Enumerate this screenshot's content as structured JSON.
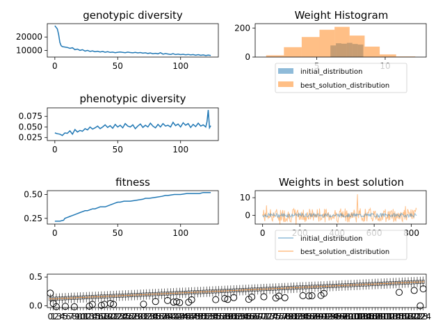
{
  "colors": {
    "line": "#1f77b4",
    "init": "#1f77b4",
    "best": "#ff7f0e",
    "axis": "#000000"
  },
  "chart_data": [
    {
      "type": "line",
      "title": "genotypic diversity",
      "xticks": [
        0,
        50,
        100
      ],
      "yticks": [
        10000,
        20000
      ],
      "ytick_labels": [
        "10000",
        "20000"
      ],
      "xlim": [
        -6,
        130
      ],
      "ylim": [
        5000,
        30000
      ],
      "x": [
        0,
        2,
        3,
        4,
        5,
        6,
        8,
        10,
        12,
        14,
        16,
        18,
        20,
        22,
        24,
        26,
        28,
        30,
        32,
        34,
        36,
        38,
        40,
        42,
        44,
        46,
        48,
        50,
        52,
        54,
        56,
        58,
        60,
        62,
        64,
        66,
        68,
        70,
        72,
        74,
        76,
        78,
        80,
        82,
        84,
        86,
        88,
        90,
        92,
        94,
        96,
        98,
        100,
        102,
        104,
        106,
        108,
        110,
        112,
        114,
        116,
        118,
        120,
        122,
        124
      ],
      "y": [
        28500,
        26000,
        22000,
        16000,
        13500,
        12800,
        12500,
        12200,
        11500,
        12000,
        10500,
        11000,
        10000,
        10500,
        9500,
        10000,
        9200,
        9600,
        9000,
        9400,
        8800,
        9200,
        8600,
        9000,
        8500,
        8700,
        8300,
        8600,
        8800,
        8500,
        8300,
        8700,
        8400,
        8200,
        8500,
        8100,
        8400,
        7900,
        8200,
        7700,
        8000,
        7500,
        7800,
        7400,
        8300,
        7200,
        7600,
        7300,
        7000,
        7500,
        6900,
        7200,
        6800,
        7100,
        6700,
        7000,
        6600,
        6900,
        6400,
        6800,
        6300,
        6600,
        6100,
        6500,
        6200
      ]
    },
    {
      "type": "bar",
      "title": "Weight Histogram",
      "xticks": [
        5,
        10
      ],
      "yticks": [
        0,
        200
      ],
      "xlim": [
        0.5,
        13
      ],
      "ylim": [
        0,
        230
      ],
      "series": [
        {
          "name": "initial_distribution",
          "bins": [
            [
              6.0,
              6.4,
              80
            ],
            [
              6.4,
              6.8,
              95
            ],
            [
              6.8,
              7.2,
              92
            ],
            [
              7.2,
              7.6,
              98
            ],
            [
              7.6,
              8.0,
              90
            ],
            [
              8.0,
              8.4,
              86
            ]
          ]
        },
        {
          "name": "best_solution_distribution",
          "bins": [
            [
              1.3,
              2.6,
              12
            ],
            [
              2.6,
              3.9,
              68
            ],
            [
              3.9,
              5.2,
              138
            ],
            [
              5.2,
              6.3,
              188
            ],
            [
              6.3,
              7.4,
              208
            ],
            [
              7.4,
              8.5,
              148
            ],
            [
              8.5,
              9.6,
              72
            ],
            [
              9.6,
              10.8,
              18
            ],
            [
              10.8,
              12.2,
              4
            ]
          ]
        }
      ],
      "legend": [
        "initial_distribution",
        "best_solution_distribution"
      ]
    },
    {
      "type": "line",
      "title": "phenotypic diversity",
      "xticks": [
        0,
        50,
        100
      ],
      "yticks": [
        0.025,
        0.05,
        0.075
      ],
      "ytick_labels": [
        "0.025",
        "0.050",
        "0.075"
      ],
      "xlim": [
        -6,
        130
      ],
      "ylim": [
        0.018,
        0.095
      ],
      "x": [
        0,
        2,
        4,
        6,
        8,
        10,
        12,
        14,
        16,
        18,
        20,
        22,
        24,
        26,
        28,
        30,
        32,
        34,
        36,
        38,
        40,
        42,
        44,
        46,
        48,
        50,
        52,
        54,
        56,
        58,
        60,
        62,
        64,
        66,
        68,
        70,
        72,
        74,
        76,
        78,
        80,
        82,
        84,
        86,
        88,
        90,
        92,
        94,
        96,
        98,
        100,
        102,
        104,
        106,
        108,
        110,
        112,
        114,
        116,
        118,
        120,
        121,
        122,
        123,
        124
      ],
      "y": [
        0.036,
        0.034,
        0.033,
        0.03,
        0.036,
        0.035,
        0.041,
        0.033,
        0.044,
        0.038,
        0.042,
        0.04,
        0.046,
        0.043,
        0.05,
        0.045,
        0.048,
        0.052,
        0.046,
        0.05,
        0.055,
        0.049,
        0.053,
        0.047,
        0.056,
        0.05,
        0.054,
        0.048,
        0.058,
        0.052,
        0.05,
        0.055,
        0.046,
        0.052,
        0.057,
        0.049,
        0.054,
        0.05,
        0.059,
        0.052,
        0.048,
        0.056,
        0.05,
        0.058,
        0.052,
        0.054,
        0.05,
        0.061,
        0.053,
        0.057,
        0.05,
        0.06,
        0.054,
        0.058,
        0.049,
        0.056,
        0.051,
        0.059,
        0.052,
        0.055,
        0.05,
        0.062,
        0.09,
        0.048,
        0.053
      ]
    },
    {
      "type": "line",
      "title": "Weights in best solution",
      "xticks": [
        0,
        200,
        400,
        600,
        800
      ],
      "yticks": [
        0,
        10
      ],
      "xlim": [
        -40,
        880
      ],
      "ylim": [
        -5,
        14
      ],
      "legend": [
        "initial_distribution",
        "best_solution_distribution"
      ]
    },
    {
      "type": "line",
      "title": "fitness",
      "xticks": [
        0,
        50,
        100
      ],
      "yticks": [
        0.25,
        0.5
      ],
      "ytick_labels": [
        "0.25",
        "0.50"
      ],
      "xlim": [
        -6,
        130
      ],
      "ylim": [
        0.19,
        0.54
      ],
      "x": [
        0,
        4,
        7,
        8,
        10,
        12,
        14,
        16,
        18,
        20,
        22,
        24,
        26,
        28,
        30,
        32,
        34,
        36,
        38,
        40,
        42,
        44,
        46,
        48,
        50,
        52,
        55,
        60,
        65,
        70,
        72,
        75,
        80,
        85,
        88,
        90,
        95,
        100,
        105,
        110,
        115,
        118,
        120,
        124
      ],
      "y": [
        0.22,
        0.22,
        0.23,
        0.25,
        0.26,
        0.27,
        0.28,
        0.29,
        0.3,
        0.31,
        0.32,
        0.33,
        0.33,
        0.34,
        0.35,
        0.35,
        0.36,
        0.37,
        0.37,
        0.37,
        0.38,
        0.39,
        0.4,
        0.41,
        0.42,
        0.42,
        0.43,
        0.43,
        0.44,
        0.45,
        0.46,
        0.46,
        0.47,
        0.48,
        0.49,
        0.49,
        0.5,
        0.5,
        0.51,
        0.51,
        0.51,
        0.52,
        0.52,
        0.52
      ]
    },
    {
      "type": "box",
      "yticks": [
        0.0,
        0.5
      ],
      "ytick_labels": [
        "0.0",
        "0.5"
      ],
      "n_boxes": 125,
      "ylim": [
        -0.03,
        0.55
      ]
    }
  ]
}
